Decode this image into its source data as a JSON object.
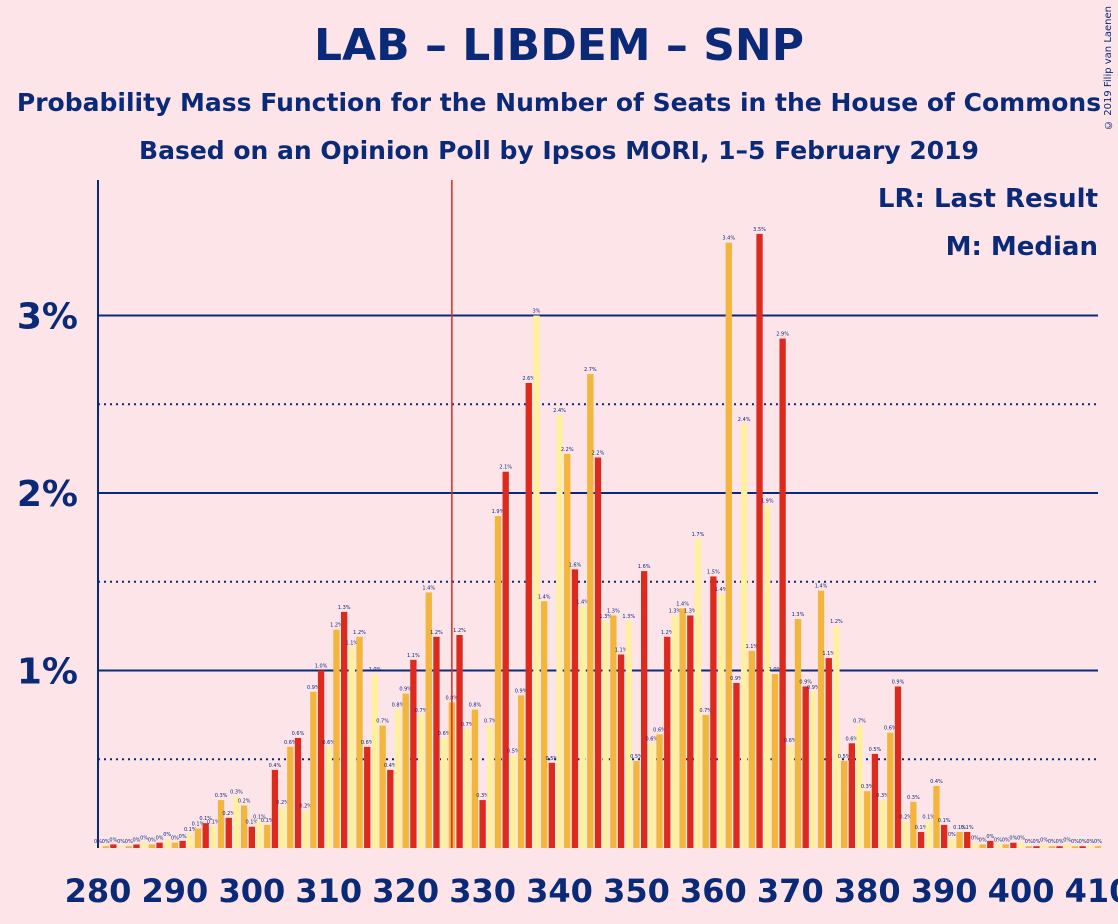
{
  "header": {
    "title": "LAB – LIBDEM – SNP",
    "subtitle1": "Probability Mass Function for the Number of Seats in the House of Commons",
    "subtitle2": "Based on an Opinion Poll by Ipsos MORI, 1–5 February 2019",
    "copyright": "© 2019 Filip van Laenen"
  },
  "legend": {
    "lr": "LR: Last Result",
    "m": "M: Median"
  },
  "colors": {
    "background": "#fde4e8",
    "text": "#0a2a78",
    "bar_red": "#dc2a1e",
    "bar_yellow": "#fff0a0",
    "bar_orange": "#f3b63c",
    "last_result_line": "#dc2a1e"
  },
  "chart_data": {
    "type": "bar",
    "xlabel": "",
    "ylabel": "",
    "xlim": [
      280,
      410
    ],
    "ylim": [
      0,
      3.8
    ],
    "y_ticks": [
      {
        "value": 1,
        "label": "1%"
      },
      {
        "value": 2,
        "label": "2%"
      },
      {
        "value": 3,
        "label": "3%"
      }
    ],
    "x_ticks": [
      280,
      290,
      300,
      310,
      320,
      330,
      340,
      350,
      360,
      370,
      380,
      390,
      400,
      410
    ],
    "last_result": 326,
    "median": 345,
    "x": [
      280,
      281,
      282,
      283,
      284,
      285,
      286,
      287,
      288,
      289,
      290,
      291,
      292,
      293,
      294,
      295,
      296,
      297,
      298,
      299,
      300,
      301,
      302,
      303,
      304,
      305,
      306,
      307,
      308,
      309,
      310,
      311,
      312,
      313,
      314,
      315,
      316,
      317,
      318,
      319,
      320,
      321,
      322,
      323,
      324,
      325,
      326,
      327,
      328,
      329,
      330,
      331,
      332,
      333,
      334,
      335,
      336,
      337,
      338,
      339,
      340,
      341,
      342,
      343,
      344,
      345,
      346,
      347,
      348,
      349,
      350,
      351,
      352,
      353,
      354,
      355,
      356,
      357,
      358,
      359,
      360,
      361,
      362,
      363,
      364,
      365,
      366,
      367,
      368,
      369,
      370,
      371,
      372,
      373,
      374,
      375,
      376,
      377,
      378,
      379,
      380,
      381,
      382,
      383,
      384,
      385,
      386,
      387,
      388,
      389,
      390,
      391,
      392,
      393,
      394,
      395,
      396,
      397,
      398,
      399,
      400,
      401,
      402,
      403,
      404,
      405,
      406,
      407,
      408,
      409,
      410
    ],
    "values": [
      0.01,
      0.01,
      0.02,
      0.01,
      0.01,
      0.02,
      0.03,
      0.02,
      0.03,
      0.05,
      0.03,
      0.04,
      0.08,
      0.11,
      0.14,
      0.12,
      0.27,
      0.17,
      0.29,
      0.24,
      0.12,
      0.15,
      0.13,
      0.44,
      0.23,
      0.57,
      0.62,
      0.21,
      0.88,
      1.0,
      0.57,
      1.23,
      1.33,
      1.13,
      1.19,
      0.57,
      0.98,
      0.69,
      0.44,
      0.78,
      0.87,
      1.06,
      0.75,
      1.44,
      1.19,
      0.62,
      0.82,
      1.2,
      0.67,
      0.78,
      0.27,
      0.69,
      1.87,
      2.12,
      0.52,
      0.86,
      2.62,
      3.0,
      1.39,
      0.48,
      2.44,
      2.22,
      1.57,
      1.36,
      2.67,
      2.2,
      1.28,
      1.31,
      1.09,
      1.28,
      0.49,
      1.56,
      0.59,
      0.64,
      1.19,
      1.31,
      1.35,
      1.31,
      1.74,
      0.75,
      1.53,
      1.43,
      3.41,
      0.93,
      2.39,
      1.11,
      3.46,
      1.93,
      0.98,
      2.87,
      0.58,
      1.29,
      0.91,
      0.88,
      1.45,
      1.07,
      1.25,
      0.49,
      0.59,
      0.69,
      0.32,
      0.53,
      0.27,
      0.65,
      0.91,
      0.15,
      0.26,
      0.09,
      0.15,
      0.35,
      0.13,
      0.05,
      0.09,
      0.09,
      0.03,
      0.02,
      0.04,
      0.02,
      0.02,
      0.03,
      0.03,
      0.01,
      0.01,
      0.02,
      0.01,
      0.01,
      0.02,
      0.01,
      0.01,
      0.01,
      0.01
    ],
    "value_labels": [
      "0%",
      "0%",
      "0%",
      "0%",
      "0%",
      "0%",
      "0%",
      "0%",
      "0%",
      "0%",
      "0%",
      "0%",
      "0.1%",
      "0.1%",
      "0.1%",
      "0.1%",
      "0.3%",
      "0.2%",
      "0.3%",
      "0.2%",
      "0.1%",
      "0.1%",
      "0.1%",
      "0.4%",
      "0.2%",
      "0.6%",
      "0.6%",
      "0.2%",
      "0.9%",
      "1.0%",
      "0.6%",
      "1.2%",
      "1.3%",
      "1.1%",
      "1.2%",
      "0.6%",
      "1.0%",
      "0.7%",
      "0.4%",
      "0.8%",
      "0.9%",
      "1.1%",
      "0.7%",
      "1.4%",
      "1.2%",
      "0.6%",
      "0.8%",
      "1.2%",
      "0.7%",
      "0.8%",
      "0.3%",
      "0.7%",
      "1.9%",
      "2.1%",
      "0.5%",
      "0.9%",
      "2.6%",
      "3%",
      "1.4%",
      "0.5%",
      "2.4%",
      "2.2%",
      "1.6%",
      "1.4%",
      "2.7%",
      "2.2%",
      "1.3%",
      "1.3%",
      "1.1%",
      "1.3%",
      "0.5%",
      "1.6%",
      "0.6%",
      "0.6%",
      "1.2%",
      "1.3%",
      "1.4%",
      "1.3%",
      "1.7%",
      "0.7%",
      "1.5%",
      "1.4%",
      "3.4%",
      "0.9%",
      "2.4%",
      "1.1%",
      "3.5%",
      "1.9%",
      "1.0%",
      "2.9%",
      "0.6%",
      "1.3%",
      "0.9%",
      "0.9%",
      "1.4%",
      "1.1%",
      "1.2%",
      "0.5%",
      "0.6%",
      "0.7%",
      "0.3%",
      "0.5%",
      "0.3%",
      "0.6%",
      "0.9%",
      "0.2%",
      "0.3%",
      "0.1%",
      "0.1%",
      "0.4%",
      "0.1%",
      "0%",
      "0.1%",
      "0.1%",
      "0%",
      "0%",
      "0%",
      "0%",
      "0%",
      "0%",
      "0%",
      "0%",
      "0%",
      "0%",
      "0%",
      "0%",
      "0%",
      "0%",
      "0%",
      "0%",
      "0%"
    ]
  }
}
